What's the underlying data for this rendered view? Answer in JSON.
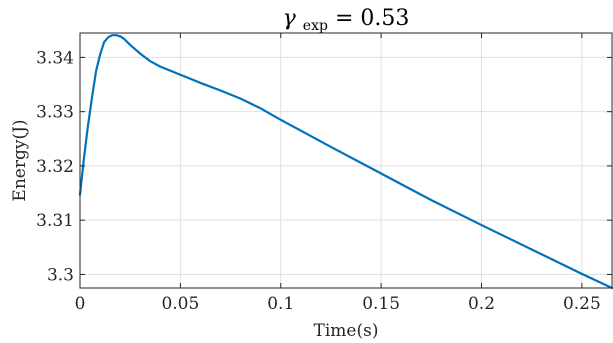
{
  "chart_data": {
    "type": "line",
    "title": {
      "symbol": "γ",
      "subscript": "exp",
      "rest": " = 0.53"
    },
    "xlabel": "Time(s)",
    "ylabel": "Energy(J)",
    "xlim": [
      0,
      0.265
    ],
    "ylim": [
      3.2975,
      3.3445
    ],
    "xticks": [
      0,
      0.05,
      0.1,
      0.15,
      0.2,
      0.25
    ],
    "xtick_labels": [
      "0",
      "0.05",
      "0.1",
      "0.15",
      "0.2",
      "0.25"
    ],
    "yticks": [
      3.3,
      3.31,
      3.32,
      3.33,
      3.34
    ],
    "ytick_labels": [
      "3.3",
      "3.31",
      "3.32",
      "3.33",
      "3.34"
    ],
    "grid": true,
    "series": [
      {
        "color": "#0072bd",
        "x": [
          0,
          0.002,
          0.004,
          0.006,
          0.008,
          0.01,
          0.012,
          0.014,
          0.016,
          0.018,
          0.02,
          0.022,
          0.025,
          0.03,
          0.035,
          0.04,
          0.05,
          0.06,
          0.07,
          0.08,
          0.09,
          0.1,
          0.125,
          0.15,
          0.175,
          0.2,
          0.225,
          0.25,
          0.265
        ],
        "y": [
          3.3147,
          3.3215,
          3.3275,
          3.3327,
          3.3375,
          3.3405,
          3.3428,
          3.3437,
          3.3441,
          3.3441,
          3.3439,
          3.3434,
          3.3423,
          3.3407,
          3.3393,
          3.3383,
          3.3368,
          3.3353,
          3.3339,
          3.3324,
          3.3306,
          3.3285,
          3.3235,
          3.3186,
          3.3137,
          3.3091,
          3.3046,
          3.3001,
          3.2975
        ]
      }
    ]
  }
}
